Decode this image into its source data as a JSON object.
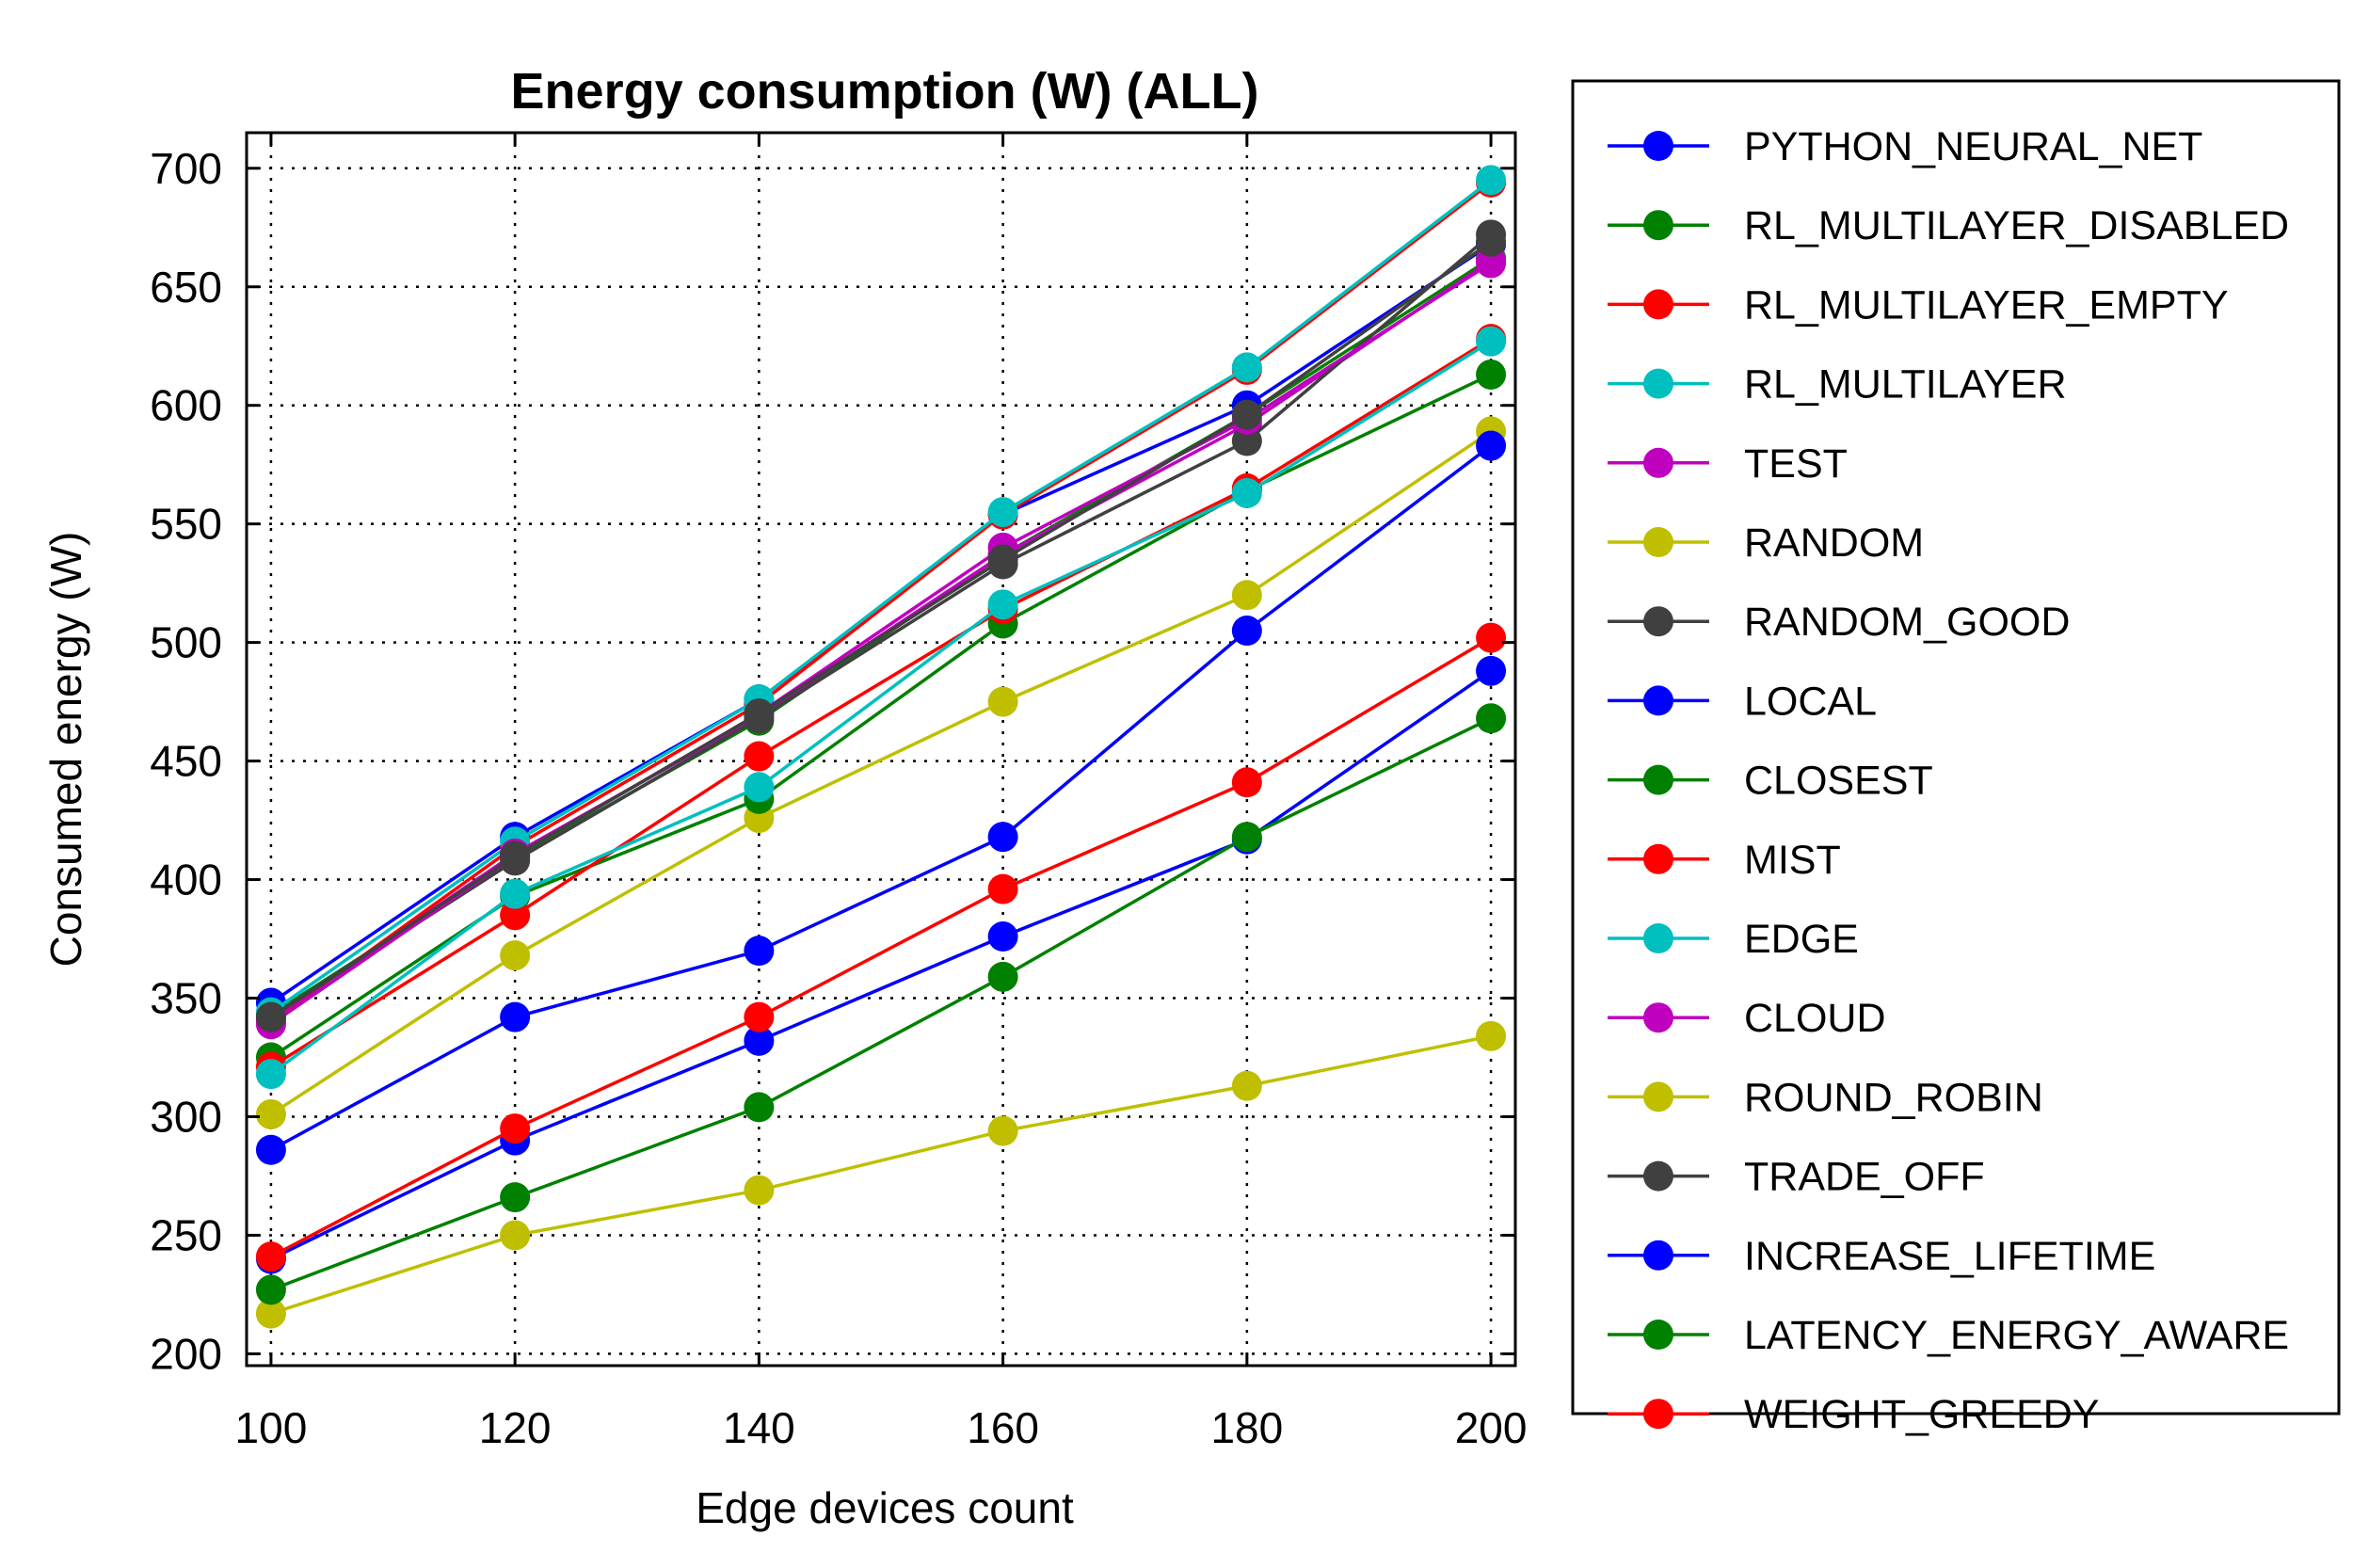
{
  "chart_data": {
    "type": "line",
    "title": "Energy consumption (W) (ALL)",
    "xlabel": "Edge devices count",
    "ylabel": "Consumed energy (W)",
    "x": [
      100,
      120,
      140,
      160,
      180,
      200
    ],
    "xlim": [
      98,
      202
    ],
    "ylim": [
      195,
      715
    ],
    "yticks": [
      200,
      250,
      300,
      350,
      400,
      450,
      500,
      550,
      600,
      650,
      700
    ],
    "grid": true,
    "legend_position": "right-outside",
    "series": [
      {
        "name": "PYTHON_NEURAL_NET",
        "color": "#0000ff",
        "values": [
          348,
          418,
          476,
          554,
          600,
          668
        ]
      },
      {
        "name": "RL_MULTILAYER_DISABLED",
        "color": "#008000",
        "values": [
          343,
          409,
          467,
          537,
          596,
          662
        ]
      },
      {
        "name": "RL_MULTILAYER_EMPTY",
        "color": "#ff0000",
        "values": [
          340,
          414,
          474,
          554,
          615,
          694
        ]
      },
      {
        "name": "RL_MULTILAYER",
        "color": "#00bfbf",
        "values": [
          344,
          416,
          476,
          555,
          616,
          695
        ]
      },
      {
        "name": "TEST",
        "color": "#bf00bf",
        "values": [
          341,
          411,
          469,
          537,
          592,
          661
        ]
      },
      {
        "name": "RANDOM",
        "color": "#bfbf00",
        "values": [
          301,
          368,
          426,
          475,
          520,
          589
        ]
      },
      {
        "name": "RANDOM_GOOD",
        "color": "#404040",
        "values": [
          342,
          408,
          468,
          533,
          585,
          672
        ]
      },
      {
        "name": "LOCAL",
        "color": "#0000ff",
        "values": [
          286,
          342,
          370,
          418,
          505,
          583
        ]
      },
      {
        "name": "CLOSEST",
        "color": "#008000",
        "values": [
          325,
          393,
          434,
          508,
          564,
          613
        ]
      },
      {
        "name": "MIST",
        "color": "#ff0000",
        "values": [
          321,
          385,
          452,
          514,
          565,
          628
        ]
      },
      {
        "name": "EDGE",
        "color": "#00bfbf",
        "values": [
          318,
          394,
          439,
          516,
          563,
          627
        ]
      },
      {
        "name": "CLOUD",
        "color": "#bf00bf",
        "values": [
          339,
          410,
          470,
          540,
          594,
          660
        ]
      },
      {
        "name": "ROUND_ROBIN",
        "color": "#bfbf00",
        "values": [
          217,
          250,
          269,
          294,
          313,
          334
        ]
      },
      {
        "name": "TRADE_OFF",
        "color": "#404040",
        "values": [
          342,
          410,
          470,
          535,
          596,
          669
        ]
      },
      {
        "name": "INCREASE_LIFETIME",
        "color": "#0000ff",
        "values": [
          240,
          290,
          332,
          376,
          417,
          488
        ]
      },
      {
        "name": "LATENCY_ENERGY_AWARE",
        "color": "#008000",
        "values": [
          227,
          266,
          304,
          359,
          418,
          468
        ]
      },
      {
        "name": "WEIGHT_GREEDY",
        "color": "#ff0000",
        "values": [
          241,
          295,
          342,
          396,
          441,
          502
        ]
      }
    ]
  }
}
